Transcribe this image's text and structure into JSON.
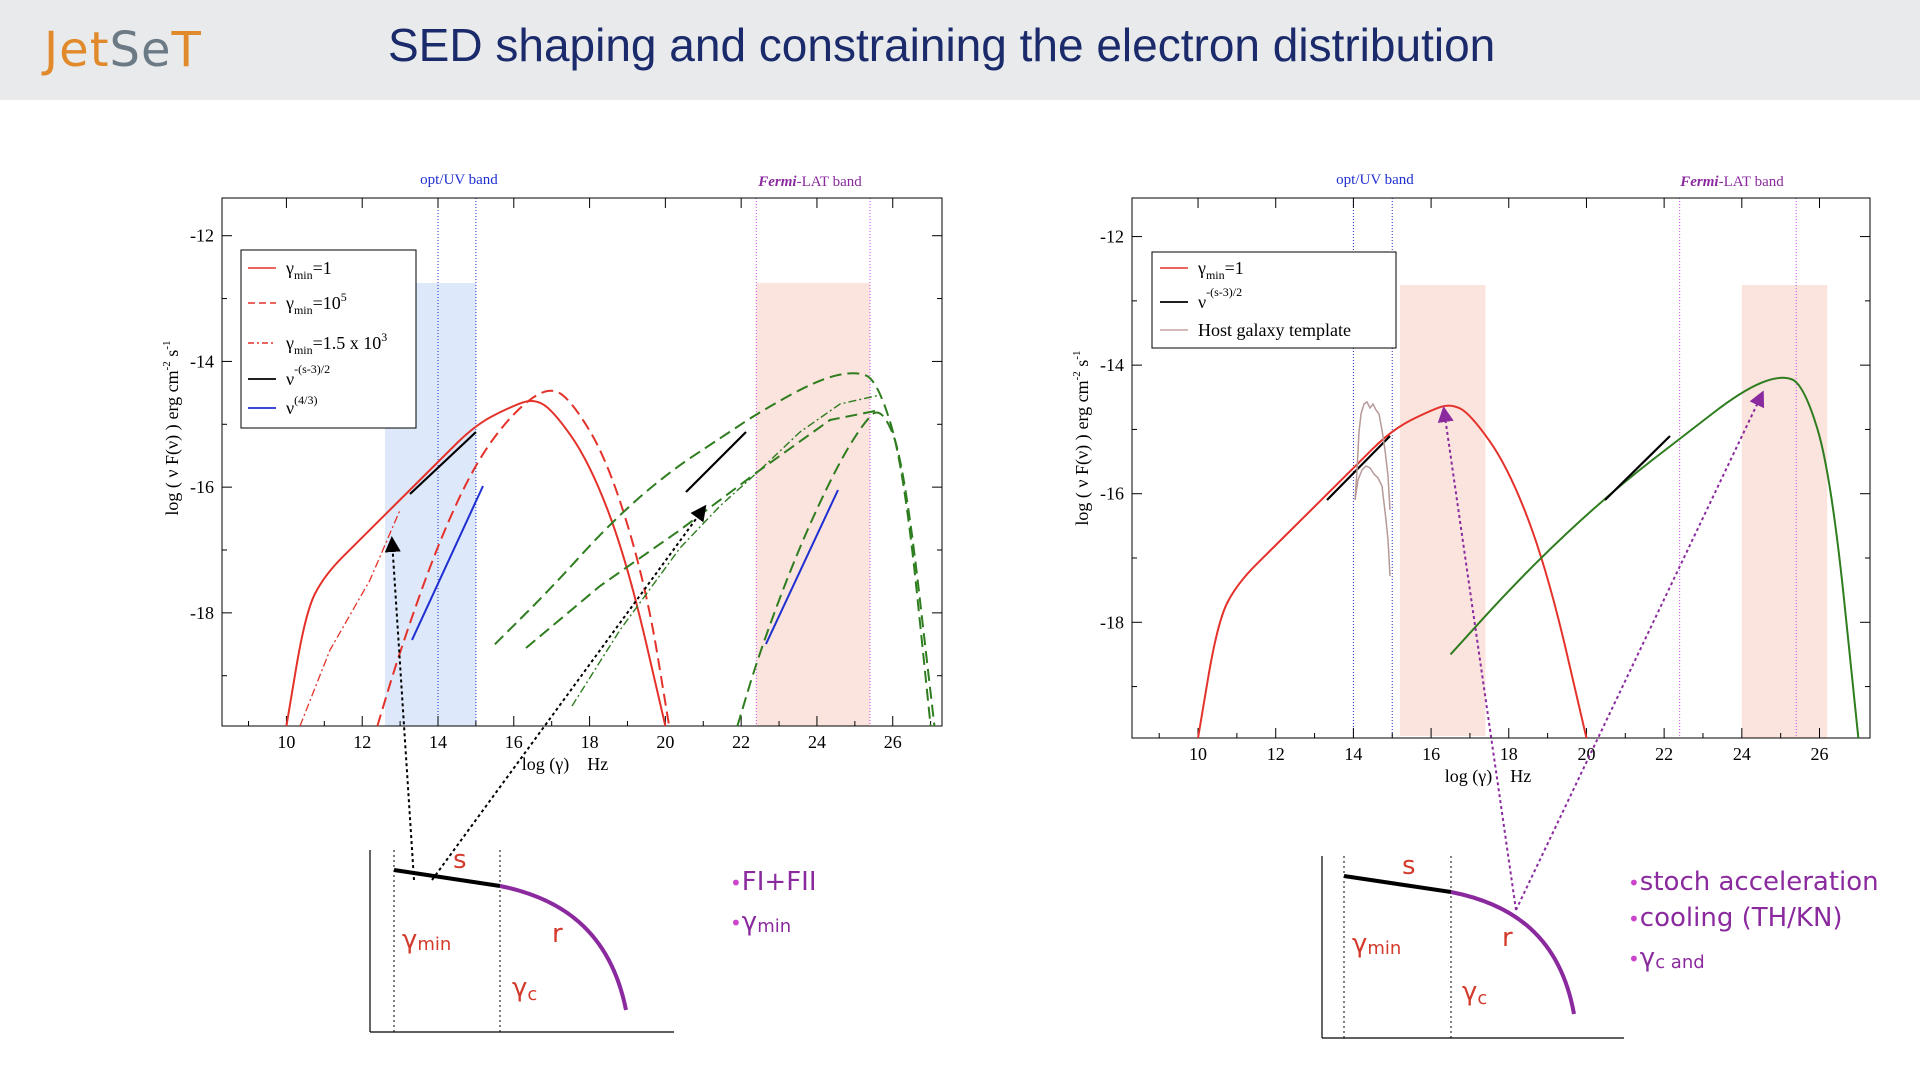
{
  "header": {
    "logo_a": "Jet",
    "logo_b": "Se",
    "logo_c": "T",
    "title": "SED shaping and constraining  the electron distribution"
  },
  "colors": {
    "red": "#e4322b",
    "green": "#2e7d1e",
    "blue": "#1f2fd1",
    "purple": "#8a2a9e",
    "magenta": "#cc44cc",
    "optband": "#dde8fb",
    "lat": "#fbe3de"
  },
  "chart_data": [
    {
      "type": "line",
      "name": "left",
      "xlabel": "log (γ)    Hz",
      "ylabel_main": "log ( ν F(ν) )",
      "ylabel_unit": "erg cm",
      "ylabel_exp1": "-2",
      "ylabel_mid": " s",
      "ylabel_exp2": "-1",
      "xlim": [
        8.3,
        27.3
      ],
      "ylim": [
        -19.8,
        -11.4
      ],
      "xticks": [
        "10",
        "12",
        "14",
        "16",
        "18",
        "20",
        "22",
        "24",
        "26"
      ],
      "yticks": [
        "-12",
        "-14",
        "-16",
        "-18"
      ],
      "bands": [
        {
          "label": "opt/UV band",
          "x0": 14,
          "x1": 15
        },
        {
          "label_em": "Fermi",
          "label_rest": "-LAT band",
          "x0": 22.4,
          "x1": 25.4
        }
      ],
      "legend": [
        {
          "sym": "γ",
          "sub": "min",
          "rest": "=1",
          "style": "solid",
          "color": "red"
        },
        {
          "sym": "γ",
          "sub": "min",
          "rest": "=10",
          "sup": "5",
          "style": "dash",
          "color": "red"
        },
        {
          "sym": "γ",
          "sub": "min",
          "rest": "=1.5 x 10",
          "sup": "3",
          "style": "dashdot",
          "color": "red"
        },
        {
          "sym": "ν",
          "sup": "-(s-3)/2",
          "style": "solid",
          "color": "black"
        },
        {
          "sym": "ν",
          "sup": "(4/3)",
          "style": "solid",
          "color": "blue"
        }
      ],
      "series": [
        {
          "name": "sync gmin=1",
          "x": [
            10,
            10.5,
            11,
            12,
            13,
            14,
            15,
            16,
            16.5,
            17,
            18,
            19,
            20
          ],
          "y": [
            -19.8,
            -18,
            -17.4,
            -16.8,
            -16.2,
            -15.6,
            -15.0,
            -14.7,
            -14.6,
            -14.75,
            -15.6,
            -17.2,
            -19.8
          ]
        },
        {
          "name": "sync gmin=1e5",
          "x": [
            12.4,
            13,
            14,
            15,
            16,
            16.9,
            17.5,
            18.5,
            19.5,
            20.1
          ],
          "y": [
            -19.8,
            -18.6,
            -16.9,
            -15.6,
            -14.8,
            -14.4,
            -14.6,
            -15.6,
            -17.6,
            -19.8
          ]
        },
        {
          "name": "ssc gmin=1",
          "x": [
            15.5,
            17,
            18.5,
            20,
            21.5,
            22.5,
            24,
            25,
            25.6,
            26.3,
            27
          ],
          "y": [
            -18.5,
            -17.6,
            -16.6,
            -15.8,
            -15.2,
            -14.8,
            -14.3,
            -14.15,
            -14.3,
            -15.7,
            -19.8
          ]
        },
        {
          "name": "ssc gmin=1e5",
          "x": [
            21.9,
            22.5,
            23.5,
            24.5,
            25.2,
            25.7,
            26.3,
            27.1
          ],
          "y": [
            -19.8,
            -18.6,
            -17.0,
            -15.7,
            -15.0,
            -14.7,
            -15.6,
            -19.8
          ]
        }
      ]
    },
    {
      "type": "line",
      "name": "right",
      "xlabel": "log (γ)    Hz",
      "ylabel_main": "log ( ν F(ν) )",
      "ylabel_unit": "erg cm",
      "ylabel_exp1": "-2",
      "ylabel_mid": " s",
      "ylabel_exp2": "-1",
      "xlim": [
        8.3,
        27.3
      ],
      "ylim": [
        -19.8,
        -11.4
      ],
      "xticks": [
        "10",
        "12",
        "14",
        "16",
        "18",
        "20",
        "22",
        "24",
        "26"
      ],
      "yticks": [
        "-12",
        "-14",
        "-16",
        "-18"
      ],
      "bands": [
        {
          "label": "opt/UV band",
          "x0": 14,
          "x1": 15
        },
        {
          "label_em": "Fermi",
          "label_rest": "-LAT band",
          "x0": 22.4,
          "x1": 25.4
        }
      ],
      "legend": [
        {
          "sym": "γ",
          "sub": "min",
          "rest": "=1",
          "style": "solid",
          "color": "red"
        },
        {
          "sym": "ν",
          "sup": "-(s-3)/2",
          "style": "solid",
          "color": "black"
        },
        {
          "label": "Host galaxy template",
          "style": "solid",
          "color": "#c9a3a3"
        }
      ],
      "series": [
        {
          "name": "sync",
          "x": [
            10,
            10.5,
            11,
            12,
            13,
            14,
            15,
            16,
            16.5,
            17,
            18,
            19,
            20
          ],
          "y": [
            -19.8,
            -18,
            -17.4,
            -16.8,
            -16.2,
            -15.6,
            -15.0,
            -14.7,
            -14.6,
            -14.75,
            -15.6,
            -17.2,
            -19.8
          ]
        },
        {
          "name": "ssc",
          "x": [
            16.5,
            18,
            19.5,
            21,
            22.5,
            24,
            25,
            25.6,
            26.3,
            27
          ],
          "y": [
            -18.5,
            -17.5,
            -16.6,
            -15.8,
            -15.1,
            -14.4,
            -14.15,
            -14.3,
            -15.7,
            -19.8
          ]
        }
      ]
    }
  ],
  "left_diagram": {
    "s": "s",
    "r": "r",
    "gmin": "γ",
    "gmin_sub": "min",
    "gc": "γ",
    "gc_sub": "c",
    "notes": [
      "FI+FII",
      "γ"
    ],
    "notes_sub": [
      "",
      "min"
    ]
  },
  "right_diagram": {
    "s": "s",
    "r": "r",
    "gmin": "γ",
    "gmin_sub": "min",
    "gc": "γ",
    "gc_sub": "c",
    "notes": [
      "stoch acceleration",
      "cooling (TH/KN)",
      "γ"
    ],
    "notes_sub": [
      "",
      "",
      "c and"
    ]
  }
}
